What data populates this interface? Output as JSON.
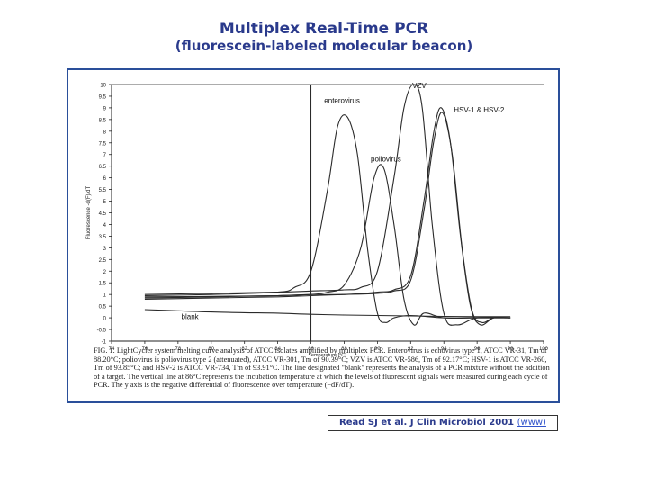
{
  "page": {
    "title": "Multiplex Real-Time PCR",
    "subtitle": "(fluorescein-labeled molecular beacon)",
    "citation": "Read SJ et al. J Clin Microbiol 2001",
    "citation_link": "(www)"
  },
  "figure": {
    "caption": "FIG. 1. LightCycler system melting curve analysis of ATCC isolates amplified by multiplex PCR. Enterovirus is echovirus type 1, ATCC VR-31, Tm of 88.20°C; poliovirus is poliovirus type 2 (attenuated), ATCC VR-301, Tm of 90.39°C; VZV is ATCC VR-586, Tm of 92.17°C; HSV-1 is ATCC VR-260, Tm of 93.85°C; and HSV-2 is ATCC VR-734, Tm of 93.91°C. The line designated \"blank\" represents the analysis of a PCR mixture without the addition of a target. The vertical line at 86°C represents the incubation temperature at which the levels of fluorescent signals were measured during each cycle of PCR. The y axis is the negative differential of fluorescence over temperature (−dF/dT)."
  },
  "colors": {
    "title": "#2a3a8c",
    "frame": "#2a4f9a",
    "ink": "#222222"
  },
  "chart_data": {
    "type": "line",
    "title": "",
    "xlabel": "Temperature [°C]",
    "ylabel": "Fluorescence -d(F)/dT",
    "xlim": [
      74,
      100
    ],
    "ylim": [
      -1,
      10
    ],
    "xticks": [
      74,
      76,
      78,
      80,
      82,
      84,
      86,
      88,
      90,
      92,
      94,
      96,
      98,
      100
    ],
    "yticks": [
      -1,
      -0.5,
      0,
      0.5,
      1,
      1.5,
      2,
      2.5,
      3,
      3.5,
      4,
      4.5,
      5,
      5.5,
      6,
      6.5,
      7,
      7.5,
      8,
      8.5,
      9,
      9.5,
      10
    ],
    "vline": 86,
    "series": [
      {
        "name": "enterovirus",
        "x": [
          76,
          80,
          84,
          85,
          86,
          87,
          87.6,
          88.2,
          88.8,
          89.4,
          90,
          90.5,
          91,
          92,
          94,
          96,
          98
        ],
        "y": [
          0.95,
          1.0,
          1.1,
          1.3,
          2.0,
          5.5,
          8.2,
          8.6,
          7.0,
          3.0,
          0.2,
          -0.2,
          0.0,
          0.1,
          0.0,
          0.0,
          0.0
        ]
      },
      {
        "name": "poliovirus",
        "x": [
          76,
          80,
          84,
          86,
          87,
          88,
          89,
          89.8,
          90.39,
          91,
          91.6,
          92.2,
          92.8,
          94,
          96,
          98
        ],
        "y": [
          0.85,
          0.9,
          0.95,
          1.0,
          1.1,
          1.4,
          3.0,
          6.0,
          6.4,
          4.0,
          0.8,
          -0.3,
          0.2,
          0.0,
          0.0,
          0.0
        ]
      },
      {
        "name": "VZV",
        "x": [
          76,
          80,
          84,
          86,
          88,
          89,
          90,
          91,
          91.6,
          92.17,
          92.7,
          93.3,
          94,
          94.8,
          96,
          98
        ],
        "y": [
          1.0,
          1.05,
          1.1,
          1.15,
          1.2,
          1.3,
          2.0,
          6.0,
          9.0,
          10.0,
          9.0,
          4.0,
          0.2,
          -0.3,
          0.0,
          0.0
        ]
      },
      {
        "name": "HSV-1",
        "x": [
          76,
          80,
          84,
          86,
          88,
          90,
          91,
          92,
          92.8,
          93.4,
          93.85,
          94.4,
          95,
          95.6,
          96.2,
          97,
          98
        ],
        "y": [
          0.9,
          0.92,
          0.95,
          1.0,
          1.0,
          1.1,
          1.2,
          1.8,
          5.0,
          8.0,
          9.0,
          7.5,
          3.5,
          0.5,
          -0.3,
          0.0,
          0.0
        ]
      },
      {
        "name": "HSV-2",
        "x": [
          76,
          80,
          84,
          86,
          88,
          90,
          91,
          92,
          92.8,
          93.4,
          93.91,
          94.5,
          95.1,
          95.7,
          96.3,
          97,
          98
        ],
        "y": [
          0.8,
          0.85,
          0.9,
          0.95,
          1.0,
          1.05,
          1.15,
          1.6,
          4.6,
          7.6,
          8.8,
          7.0,
          3.0,
          0.3,
          -0.2,
          0.0,
          0.0
        ]
      },
      {
        "name": "blank",
        "x": [
          76,
          78,
          80,
          82,
          84,
          86,
          88,
          90,
          92,
          94,
          96,
          98
        ],
        "y": [
          0.35,
          0.3,
          0.25,
          0.22,
          0.2,
          0.15,
          0.12,
          0.1,
          0.08,
          0.06,
          0.05,
          0.05
        ]
      }
    ],
    "annotations": [
      {
        "text": "enterovirus",
        "x": 86.8,
        "y": 9.2
      },
      {
        "text": "VZV",
        "x": 92.1,
        "y": 9.85
      },
      {
        "text": "HSV-1 & HSV-2",
        "x": 94.6,
        "y": 8.8
      },
      {
        "text": "poliovirus",
        "x": 89.6,
        "y": 6.7
      },
      {
        "text": "blank",
        "x": 78.2,
        "y": -0.05
      }
    ]
  }
}
